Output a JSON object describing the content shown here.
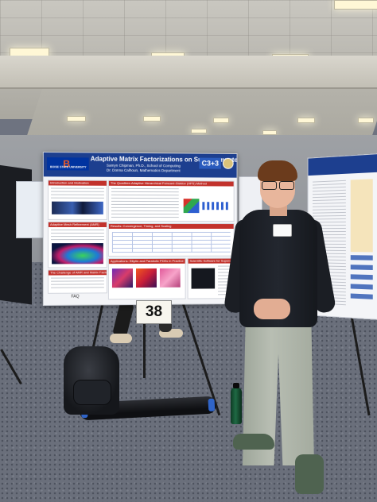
{
  "poster": {
    "title": "Adaptive Matrix Factorizations on Supercomputers",
    "authors": "Samyn Chipman, Ph.D., School of Computing",
    "advisor": "Dr. Donna Calhoun, Mathematics Department",
    "left_logo": "B",
    "left_logo_text": "BOISE STATE UNIVERSITY",
    "right_logo": "C3+3",
    "sections": [
      "Introduction and Motivation",
      "The Quadtree-Adaptive Hierarchical Poincaré-Steklov (HPS) Method",
      "Adaptive Mesh Refinement (AMR)",
      "Results: Convergence, Timing, and Scaling",
      "The Challenge of AMR and Matrix Factorizations",
      "Applications: Elliptic and Parabolic PDEs in Practice",
      "Scientific Software for Supercomputers"
    ],
    "footer": "FAQ",
    "colors": {
      "header": "#1d3f8f",
      "section_red": "#c2322c",
      "section_blue": "#2754b0"
    }
  },
  "sign": {
    "number": "38"
  }
}
